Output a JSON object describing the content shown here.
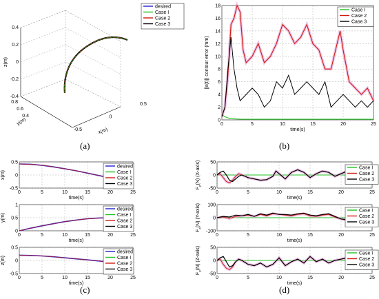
{
  "panel_labels": {
    "a": "(a)",
    "b": "(b)",
    "c": "(c)",
    "d": "(d)"
  },
  "colors": {
    "desired": "#1f1fd0",
    "case1": "#22c022",
    "case2": "#d01a10",
    "case3": "#000000",
    "envelope": "#e0a0d8"
  },
  "chart_data": [
    {
      "id": "a",
      "type": "line",
      "subtype": "3d-trajectory",
      "xlabel": "x(m)",
      "ylabel": "y(m)",
      "zlabel": "z(m)",
      "x_ticks": [
        "-0.5",
        "0",
        "0.5"
      ],
      "y_ticks": [
        "0.4",
        "0.6",
        "0.8"
      ],
      "z_ticks": [
        "-0.4",
        "-0.2",
        "0",
        "0.2",
        "0.4"
      ],
      "legend": [
        "desired",
        "Case I",
        "Case 2",
        "Case 3"
      ],
      "legend_position": "top-right",
      "grid": true
    },
    {
      "id": "b",
      "type": "line",
      "xlabel": "time(s)",
      "ylabel": "||ε(t)|| contour error (mm)",
      "xlim": [
        0,
        25
      ],
      "ylim": [
        0,
        18
      ],
      "x_ticks": [
        "0",
        "5",
        "10",
        "15",
        "20",
        "25"
      ],
      "y_ticks": [
        "0",
        "2",
        "4",
        "6",
        "8",
        "10",
        "12",
        "14",
        "16",
        "18"
      ],
      "legend": [
        "Case I",
        "Case 2",
        "Case 3"
      ],
      "legend_position": "top-right",
      "grid": true,
      "series": [
        {
          "name": "Case I",
          "x": [
            0,
            0.2,
            0.5,
            1,
            1.5,
            2,
            3,
            5,
            10,
            15,
            20,
            25
          ],
          "y": [
            0.9,
            0.7,
            0.5,
            0.3,
            0.2,
            0.15,
            0.12,
            0.1,
            0.1,
            0.1,
            0.1,
            0.1
          ]
        },
        {
          "name": "Case 2",
          "x": [
            0,
            0.5,
            1,
            1.5,
            2,
            2.5,
            3,
            3.5,
            4,
            5,
            6,
            7,
            8,
            9,
            10,
            11,
            12,
            13,
            14,
            15,
            16,
            17,
            18,
            19,
            19.5,
            20,
            21,
            22,
            23,
            24,
            25
          ],
          "y": [
            0.5,
            2,
            7,
            15,
            16,
            18,
            17,
            11,
            9,
            10,
            12,
            9,
            10,
            12,
            15,
            14,
            12,
            13,
            15,
            12,
            11,
            8,
            8,
            12,
            14,
            11,
            6,
            5,
            4,
            5,
            3
          ]
        },
        {
          "name": "Case 3",
          "x": [
            0,
            0.5,
            1,
            1.5,
            2,
            2.5,
            3,
            4,
            5,
            6,
            7,
            8,
            9,
            10,
            11,
            12,
            13,
            14,
            15,
            16,
            17,
            18,
            19,
            20,
            21,
            22,
            23,
            24,
            25
          ],
          "y": [
            0.5,
            2,
            8,
            13,
            8,
            5,
            3,
            4,
            5,
            4,
            2,
            3,
            6,
            5,
            7,
            4,
            5,
            6,
            5,
            4,
            6,
            2,
            3,
            4,
            3,
            2,
            3,
            2,
            3
          ]
        }
      ]
    },
    {
      "id": "c1",
      "type": "line",
      "xlabel": "time(s)",
      "ylabel": "x(m)",
      "xlim": [
        0,
        25
      ],
      "ylim": [
        -0.5,
        0.5
      ],
      "x_ticks": [
        "0",
        "5",
        "10",
        "15",
        "20",
        "25"
      ],
      "y_ticks": [
        "-0.5",
        "0",
        "0.5"
      ],
      "legend": [
        "desired",
        "Case I",
        "Case 2",
        "Case 3"
      ],
      "legend_position": "bottom-right",
      "grid": true,
      "series": [
        {
          "x": [
            0,
            2.5,
            5,
            7.5,
            10,
            12.5,
            15,
            17.5,
            20,
            22.5,
            25
          ],
          "y": [
            0.42,
            0.41,
            0.37,
            0.31,
            0.24,
            0.16,
            0.07,
            -0.02,
            -0.11,
            -0.2,
            -0.28
          ]
        }
      ]
    },
    {
      "id": "c2",
      "type": "line",
      "xlabel": "time(s)",
      "ylabel": "y(m)",
      "xlim": [
        0,
        25
      ],
      "ylim": [
        0,
        1
      ],
      "x_ticks": [
        "0",
        "5",
        "10",
        "15",
        "20",
        "25"
      ],
      "y_ticks": [
        "0",
        "0.5",
        "1"
      ],
      "legend": [
        "desired",
        "Case I",
        "Case 2",
        "Case 3"
      ],
      "legend_position": "bottom-right",
      "grid": true,
      "series": [
        {
          "x": [
            0,
            2.5,
            5,
            7.5,
            10,
            12.5,
            15,
            17.5,
            20,
            22.5,
            25
          ],
          "y": [
            0.0,
            0.1,
            0.19,
            0.27,
            0.35,
            0.41,
            0.46,
            0.49,
            0.5,
            0.49,
            0.46
          ]
        }
      ]
    },
    {
      "id": "c3",
      "type": "line",
      "xlabel": "time(s)",
      "ylabel": "z(m)",
      "xlim": [
        0,
        25
      ],
      "ylim": [
        -0.5,
        0.5
      ],
      "x_ticks": [
        "0",
        "5",
        "10",
        "15",
        "20",
        "25"
      ],
      "y_ticks": [
        "-0.5",
        "0",
        "0.5"
      ],
      "legend": [
        "desired",
        "Case I",
        "Case 2",
        "Case 3"
      ],
      "legend_position": "bottom-right",
      "grid": true,
      "series": [
        {
          "x": [
            0,
            2.5,
            5,
            7.5,
            10,
            12.5,
            15,
            17.5,
            20,
            22.5,
            25
          ],
          "y": [
            0.2,
            0.19,
            0.17,
            0.14,
            0.1,
            0.06,
            0.02,
            -0.02,
            -0.07,
            -0.11,
            -0.15
          ]
        }
      ]
    },
    {
      "id": "d1",
      "type": "line",
      "xlabel": "time(s)",
      "ylabel": "F_c(N) (X-axis)",
      "xlim": [
        0,
        25
      ],
      "ylim": [
        -50,
        50
      ],
      "x_ticks": [
        "0",
        "5",
        "10",
        "15",
        "20",
        "25"
      ],
      "y_ticks": [
        "-50",
        "0",
        "50"
      ],
      "legend": [
        "Case I",
        "Case 2",
        "Case 3"
      ],
      "legend_position": "right",
      "grid": true,
      "series": [
        {
          "name": "Case I",
          "x": [
            0,
            25
          ],
          "y": [
            0,
            0
          ]
        },
        {
          "name": "Case 2",
          "x": [
            0,
            0.5,
            1,
            1.5,
            2,
            2.5,
            3,
            3.5,
            4,
            5,
            6,
            7,
            8,
            9,
            9.5,
            10,
            11,
            12,
            13,
            14,
            15,
            16,
            17,
            18,
            19,
            20,
            21,
            22,
            23,
            24,
            25
          ],
          "y": [
            0,
            5,
            -10,
            -25,
            -30,
            -20,
            -5,
            5,
            0,
            -10,
            -15,
            -20,
            -18,
            -5,
            15,
            5,
            -15,
            10,
            20,
            10,
            -10,
            5,
            15,
            10,
            -5,
            5,
            15,
            10,
            5,
            10,
            5
          ]
        },
        {
          "name": "Case 3",
          "x": [
            0,
            0.5,
            1,
            1.5,
            2,
            2.5,
            3,
            3.5,
            4,
            5,
            6,
            7,
            8,
            9,
            9.5,
            10,
            11,
            12,
            13,
            14,
            15,
            16,
            17,
            18,
            19,
            20,
            21,
            22,
            23,
            24,
            25
          ],
          "y": [
            0,
            10,
            15,
            0,
            -20,
            -25,
            -15,
            -5,
            0,
            -10,
            -15,
            -20,
            -18,
            -5,
            15,
            5,
            -15,
            10,
            20,
            10,
            -10,
            5,
            15,
            10,
            -5,
            5,
            15,
            10,
            5,
            10,
            5
          ]
        }
      ]
    },
    {
      "id": "d2",
      "type": "line",
      "xlabel": "time(s)",
      "ylabel": "F_c(N) (Y-axis)",
      "xlim": [
        0,
        25
      ],
      "ylim": [
        -100,
        100
      ],
      "x_ticks": [
        "0",
        "5",
        "10",
        "15",
        "20",
        "25"
      ],
      "y_ticks": [
        "-100",
        "0",
        "100"
      ],
      "legend": [
        "Case I",
        "Case 2",
        "Case 3"
      ],
      "legend_position": "right",
      "grid": true,
      "series": [
        {
          "name": "Case I",
          "x": [
            0,
            25
          ],
          "y": [
            0,
            0
          ]
        },
        {
          "name": "Case 2",
          "x": [
            0,
            1,
            2,
            3,
            4,
            5,
            6,
            7,
            8,
            9,
            10,
            11,
            12,
            13,
            14,
            15,
            16,
            17,
            18,
            19,
            20,
            21,
            22,
            23,
            24,
            25
          ],
          "y": [
            0,
            5,
            -5,
            10,
            15,
            20,
            10,
            25,
            15,
            30,
            25,
            20,
            15,
            25,
            30,
            15,
            10,
            20,
            25,
            5,
            -10,
            -20,
            -10,
            -5,
            5,
            10
          ]
        },
        {
          "name": "Case 3",
          "x": [
            0,
            1,
            2,
            3,
            4,
            5,
            6,
            7,
            8,
            9,
            10,
            11,
            12,
            13,
            14,
            15,
            16,
            17,
            18,
            19,
            20,
            21,
            22,
            23,
            24,
            25
          ],
          "y": [
            0,
            10,
            5,
            20,
            15,
            25,
            10,
            30,
            20,
            35,
            25,
            25,
            20,
            30,
            35,
            20,
            15,
            25,
            30,
            10,
            -10,
            -15,
            -5,
            0,
            5,
            15
          ]
        }
      ]
    },
    {
      "id": "d3",
      "type": "line",
      "xlabel": "time(s)",
      "ylabel": "F_c(N) (Z-axis)",
      "xlim": [
        0,
        25
      ],
      "ylim": [
        -50,
        50
      ],
      "x_ticks": [
        "0",
        "5",
        "10",
        "15",
        "20",
        "25"
      ],
      "y_ticks": [
        "-50",
        "0",
        "50"
      ],
      "legend": [
        "Case I",
        "Case 2",
        "Case 3"
      ],
      "legend_position": "right",
      "grid": true,
      "series": [
        {
          "name": "Case I",
          "x": [
            0,
            25
          ],
          "y": [
            0,
            0
          ]
        },
        {
          "name": "Case 2",
          "x": [
            0,
            0.5,
            1,
            1.5,
            2,
            2.5,
            3,
            3.5,
            4,
            5,
            6,
            7,
            8,
            9,
            10,
            11,
            12,
            13,
            14,
            15,
            16,
            17,
            18,
            19,
            20,
            21,
            22,
            23,
            24,
            25
          ],
          "y": [
            0,
            5,
            -15,
            -30,
            -35,
            -25,
            -5,
            5,
            0,
            -15,
            -20,
            -10,
            -25,
            -15,
            10,
            -20,
            -5,
            5,
            -10,
            15,
            -5,
            5,
            -10,
            0,
            5,
            10,
            5,
            10,
            5,
            10
          ]
        },
        {
          "name": "Case 3",
          "x": [
            0,
            0.5,
            1,
            1.5,
            2,
            2.5,
            3,
            3.5,
            4,
            5,
            6,
            7,
            8,
            9,
            10,
            11,
            12,
            13,
            14,
            15,
            16,
            17,
            18,
            19,
            20,
            21,
            22,
            23,
            24,
            25
          ],
          "y": [
            0,
            10,
            15,
            -5,
            -25,
            -20,
            -5,
            5,
            0,
            -15,
            -20,
            -10,
            -25,
            -15,
            10,
            -20,
            -5,
            5,
            -10,
            15,
            -5,
            5,
            -10,
            0,
            5,
            10,
            5,
            10,
            5,
            10
          ]
        }
      ]
    }
  ]
}
